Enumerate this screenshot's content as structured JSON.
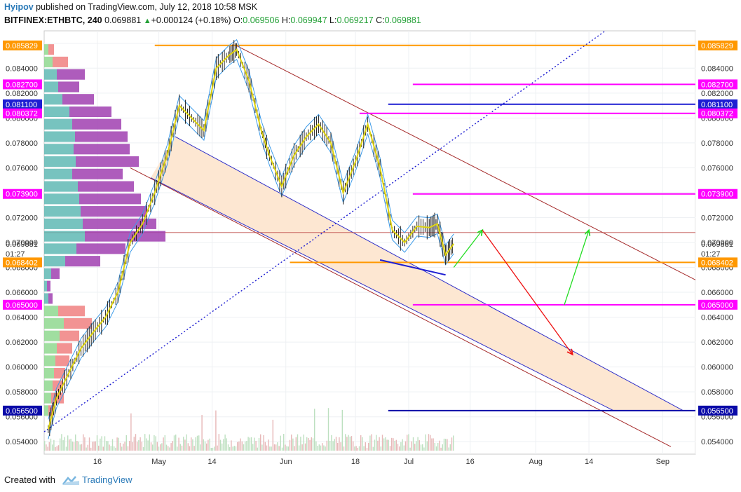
{
  "header": {
    "author": "Hyipov",
    "published": " published on TradingView.com, July 12, 2018 10:58 MSK",
    "symbol": "BITFINEX:ETHBTC, 240",
    "last": "0.069881",
    "change": "+0.000124 (+0.18%)",
    "o_label": "O:",
    "o_val": "0.069506",
    "h_label": "H:",
    "h_val": "0.069947",
    "l_label": "L:",
    "l_val": "0.069217",
    "c_label": "C:",
    "c_val": "0.069881",
    "change_arrow": "▲"
  },
  "footer": {
    "created_with": "Created with",
    "brand": "TradingView"
  },
  "colors": {
    "orange": "#ff9800",
    "magenta": "#ff00ff",
    "navy": "#1e1ed2",
    "dark_navy": "#0a0aa8",
    "channel_fill": "#fde7d2",
    "brown": "#a52a2a",
    "blue_line": "#3030c8",
    "bb": "#3d9be9",
    "ma": "#f0d800",
    "green_arrow": "#22dd22",
    "red_arrow": "#ee1111",
    "vp_up": "#5fb8b4",
    "vp_down": "#a040b0",
    "vp_up_light": "#8fd88f",
    "vp_down_light": "#f08080"
  },
  "chart_data": {
    "type": "line",
    "title": "BITFINEX:ETHBTC, 240",
    "ylim": [
      0.053,
      0.087
    ],
    "x_ticks": [
      "16",
      "May",
      "14",
      "Jun",
      "18",
      "Jul",
      "16",
      "Aug",
      "14",
      "Sep"
    ],
    "y_ticks": [
      "0.054000",
      "0.056000",
      "0.058000",
      "0.060000",
      "0.062000",
      "0.064000",
      "0.066000",
      "0.068000",
      "0.070000",
      "0.072000",
      "0.074000",
      "0.076000",
      "0.078000",
      "0.080000",
      "0.082000",
      "0.084000",
      "0.086000"
    ],
    "current_price": "0.069881",
    "countdown": "01:27",
    "levels": [
      {
        "label": "0.085829",
        "value": 0.085829,
        "color": "orange"
      },
      {
        "label": "0.082700",
        "value": 0.0827,
        "color": "magenta"
      },
      {
        "label": "0.081100",
        "value": 0.0811,
        "color": "navy"
      },
      {
        "label": "0.080372",
        "value": 0.080372,
        "color": "magenta"
      },
      {
        "label": "0.073900",
        "value": 0.0739,
        "color": "magenta"
      },
      {
        "label": "0.068402",
        "value": 0.068402,
        "color": "orange"
      },
      {
        "label": "0.065000",
        "value": 0.065,
        "color": "magenta"
      },
      {
        "label": "0.056500",
        "value": 0.0565,
        "color": "dark_navy"
      }
    ],
    "price_path": [
      [
        "2018-04-04",
        0.055
      ],
      [
        "2018-04-06",
        0.0575
      ],
      [
        "2018-04-09",
        0.0595
      ],
      [
        "2018-04-12",
        0.0615
      ],
      [
        "2018-04-15",
        0.0628
      ],
      [
        "2018-04-18",
        0.064
      ],
      [
        "2018-04-21",
        0.066
      ],
      [
        "2018-04-24",
        0.07
      ],
      [
        "2018-04-27",
        0.0715
      ],
      [
        "2018-04-30",
        0.074
      ],
      [
        "2018-05-03",
        0.077
      ],
      [
        "2018-05-06",
        0.081
      ],
      [
        "2018-05-09",
        0.08
      ],
      [
        "2018-05-12",
        0.079
      ],
      [
        "2018-05-15",
        0.084
      ],
      [
        "2018-05-18",
        0.085
      ],
      [
        "2018-05-20",
        0.0855
      ],
      [
        "2018-05-23",
        0.083
      ],
      [
        "2018-05-26",
        0.079
      ],
      [
        "2018-05-28",
        0.077
      ],
      [
        "2018-05-31",
        0.0745
      ],
      [
        "2018-06-03",
        0.077
      ],
      [
        "2018-06-06",
        0.0785
      ],
      [
        "2018-06-09",
        0.0795
      ],
      [
        "2018-06-12",
        0.078
      ],
      [
        "2018-06-15",
        0.074
      ],
      [
        "2018-06-18",
        0.0765
      ],
      [
        "2018-06-21",
        0.0795
      ],
      [
        "2018-06-24",
        0.076
      ],
      [
        "2018-06-27",
        0.071
      ],
      [
        "2018-06-30",
        0.07
      ],
      [
        "2018-07-03",
        0.0713
      ],
      [
        "2018-07-06",
        0.0712
      ],
      [
        "2018-07-08",
        0.0715
      ],
      [
        "2018-07-10",
        0.069
      ],
      [
        "2018-07-12",
        0.0699
      ]
    ],
    "volume_profile": [
      {
        "price": 0.0855,
        "up": 6,
        "down": 8
      },
      {
        "price": 0.0845,
        "up": 12,
        "down": 22
      },
      {
        "price": 0.0835,
        "up": 18,
        "down": 40
      },
      {
        "price": 0.0825,
        "up": 20,
        "down": 30
      },
      {
        "price": 0.0815,
        "up": 26,
        "down": 45
      },
      {
        "price": 0.0805,
        "up": 36,
        "down": 60
      },
      {
        "price": 0.0795,
        "up": 40,
        "down": 70
      },
      {
        "price": 0.0785,
        "up": 44,
        "down": 75
      },
      {
        "price": 0.0775,
        "up": 42,
        "down": 80
      },
      {
        "price": 0.0765,
        "up": 45,
        "down": 90
      },
      {
        "price": 0.0755,
        "up": 40,
        "down": 72
      },
      {
        "price": 0.0745,
        "up": 48,
        "down": 80
      },
      {
        "price": 0.0735,
        "up": 50,
        "down": 88
      },
      {
        "price": 0.0725,
        "up": 52,
        "down": 95
      },
      {
        "price": 0.0715,
        "up": 55,
        "down": 105
      },
      {
        "price": 0.0705,
        "up": 58,
        "down": 115
      },
      {
        "price": 0.0695,
        "up": 46,
        "down": 70
      },
      {
        "price": 0.0685,
        "up": 30,
        "down": 50
      },
      {
        "price": 0.0675,
        "up": 10,
        "down": 12
      },
      {
        "price": 0.0665,
        "up": 4,
        "down": 5
      },
      {
        "price": 0.0655,
        "up": 6,
        "down": 6
      },
      {
        "price": 0.0645,
        "up": 20,
        "down": 38
      },
      {
        "price": 0.0635,
        "up": 28,
        "down": 40
      },
      {
        "price": 0.0625,
        "up": 22,
        "down": 28
      },
      {
        "price": 0.0615,
        "up": 18,
        "down": 22
      },
      {
        "price": 0.0605,
        "up": 16,
        "down": 20
      },
      {
        "price": 0.0595,
        "up": 14,
        "down": 16
      },
      {
        "price": 0.0585,
        "up": 12,
        "down": 14
      },
      {
        "price": 0.0575,
        "up": 10,
        "down": 18
      },
      {
        "price": 0.0565,
        "up": 6,
        "down": 8
      }
    ],
    "forecast_arrows": [
      {
        "color": "green",
        "from": [
          "2018-07-12",
          0.068
        ],
        "to": [
          "2018-07-19",
          0.071
        ]
      },
      {
        "color": "red",
        "from": [
          "2018-07-19",
          0.071
        ],
        "to": [
          "2018-08-10",
          0.061
        ]
      },
      {
        "color": "green",
        "from": [
          "2018-08-08",
          0.065
        ],
        "to": [
          "2018-08-14",
          0.071
        ]
      }
    ],
    "grid": true
  }
}
